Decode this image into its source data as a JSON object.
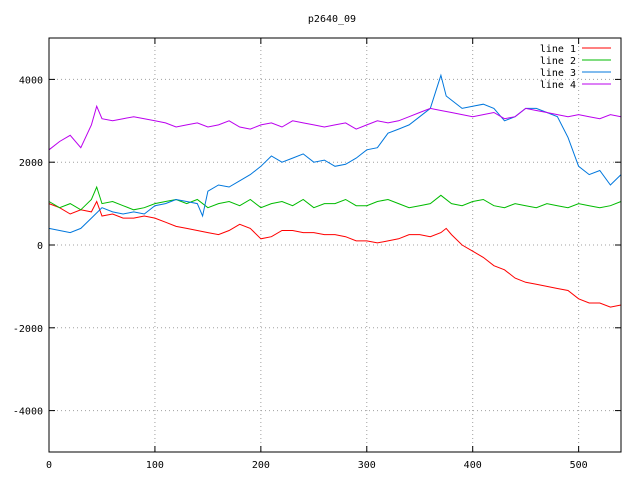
{
  "chart_data": {
    "type": "line",
    "title": "p2640_09",
    "xlabel": "",
    "ylabel": "",
    "xlim": [
      0,
      540
    ],
    "ylim": [
      -5000,
      5000
    ],
    "xticks": [
      0,
      100,
      200,
      300,
      400,
      500
    ],
    "yticks": [
      -4000,
      -2000,
      0,
      2000,
      4000
    ],
    "grid": true,
    "legend_position": "top-right",
    "series": [
      {
        "name": "line 1",
        "color": "#ff0000",
        "x": [
          0,
          10,
          20,
          30,
          40,
          45,
          50,
          60,
          70,
          80,
          90,
          100,
          110,
          120,
          130,
          140,
          150,
          160,
          170,
          180,
          190,
          200,
          210,
          220,
          230,
          240,
          250,
          260,
          270,
          280,
          290,
          300,
          310,
          320,
          330,
          340,
          350,
          360,
          370,
          375,
          380,
          390,
          400,
          410,
          420,
          430,
          440,
          450,
          460,
          470,
          480,
          490,
          500,
          510,
          520,
          530,
          540
        ],
        "y": [
          1000,
          900,
          750,
          850,
          800,
          1050,
          700,
          750,
          650,
          650,
          700,
          650,
          550,
          450,
          400,
          350,
          300,
          250,
          350,
          500,
          400,
          150,
          200,
          350,
          350,
          300,
          300,
          250,
          250,
          200,
          100,
          100,
          50,
          100,
          150,
          250,
          250,
          200,
          300,
          400,
          250,
          0,
          -150,
          -300,
          -500,
          -600,
          -800,
          -900,
          -950,
          -1000,
          -1050,
          -1100,
          -1300,
          -1400,
          -1400,
          -1500,
          -1450
        ]
      },
      {
        "name": "line 2",
        "color": "#00bb00",
        "x": [
          0,
          10,
          20,
          30,
          40,
          45,
          50,
          60,
          70,
          80,
          90,
          100,
          110,
          120,
          130,
          140,
          150,
          160,
          170,
          180,
          190,
          200,
          210,
          220,
          230,
          240,
          250,
          260,
          270,
          280,
          290,
          300,
          310,
          320,
          330,
          340,
          350,
          360,
          370,
          380,
          390,
          400,
          410,
          420,
          430,
          440,
          450,
          460,
          470,
          480,
          490,
          500,
          510,
          520,
          530,
          540
        ],
        "y": [
          1050,
          900,
          1000,
          850,
          1100,
          1400,
          1000,
          1050,
          950,
          850,
          900,
          1000,
          1050,
          1100,
          1000,
          1100,
          900,
          1000,
          1050,
          950,
          1100,
          900,
          1000,
          1050,
          950,
          1100,
          900,
          1000,
          1000,
          1100,
          950,
          950,
          1050,
          1100,
          1000,
          900,
          950,
          1000,
          1200,
          1000,
          950,
          1050,
          1100,
          950,
          900,
          1000,
          950,
          900,
          1000,
          950,
          900,
          1000,
          950,
          900,
          950,
          1050
        ]
      },
      {
        "name": "line 3",
        "color": "#0077dd",
        "x": [
          0,
          10,
          20,
          30,
          40,
          50,
          60,
          70,
          80,
          90,
          100,
          110,
          120,
          130,
          140,
          145,
          150,
          160,
          170,
          180,
          190,
          200,
          210,
          220,
          230,
          240,
          250,
          260,
          270,
          280,
          290,
          300,
          310,
          320,
          330,
          340,
          350,
          360,
          365,
          370,
          375,
          380,
          390,
          400,
          410,
          420,
          430,
          440,
          450,
          460,
          470,
          480,
          490,
          500,
          510,
          520,
          530,
          540
        ],
        "y": [
          400,
          350,
          300,
          400,
          650,
          900,
          800,
          750,
          800,
          750,
          950,
          1000,
          1100,
          1050,
          1000,
          700,
          1300,
          1450,
          1400,
          1550,
          1700,
          1900,
          2150,
          2000,
          2100,
          2200,
          2000,
          2050,
          1900,
          1950,
          2100,
          2300,
          2350,
          2700,
          2800,
          2900,
          3100,
          3300,
          3700,
          4100,
          3600,
          3500,
          3300,
          3350,
          3400,
          3300,
          3000,
          3100,
          3300,
          3300,
          3200,
          3100,
          2600,
          1900,
          1700,
          1800,
          1450,
          1700
        ]
      },
      {
        "name": "line 4",
        "color": "#bb00ee",
        "x": [
          0,
          10,
          20,
          30,
          40,
          45,
          50,
          60,
          70,
          80,
          90,
          100,
          110,
          120,
          130,
          140,
          150,
          160,
          170,
          180,
          190,
          200,
          210,
          220,
          230,
          240,
          250,
          260,
          270,
          280,
          290,
          300,
          310,
          320,
          330,
          340,
          350,
          360,
          370,
          380,
          390,
          400,
          410,
          420,
          430,
          440,
          450,
          460,
          470,
          480,
          490,
          500,
          510,
          520,
          530,
          540
        ],
        "y": [
          2300,
          2500,
          2650,
          2350,
          2900,
          3350,
          3050,
          3000,
          3050,
          3100,
          3050,
          3000,
          2950,
          2850,
          2900,
          2950,
          2850,
          2900,
          3000,
          2850,
          2800,
          2900,
          2950,
          2850,
          3000,
          2950,
          2900,
          2850,
          2900,
          2950,
          2800,
          2900,
          3000,
          2950,
          3000,
          3100,
          3200,
          3300,
          3250,
          3200,
          3150,
          3100,
          3150,
          3200,
          3050,
          3100,
          3300,
          3250,
          3200,
          3150,
          3100,
          3150,
          3100,
          3050,
          3150,
          3100
        ]
      }
    ]
  }
}
